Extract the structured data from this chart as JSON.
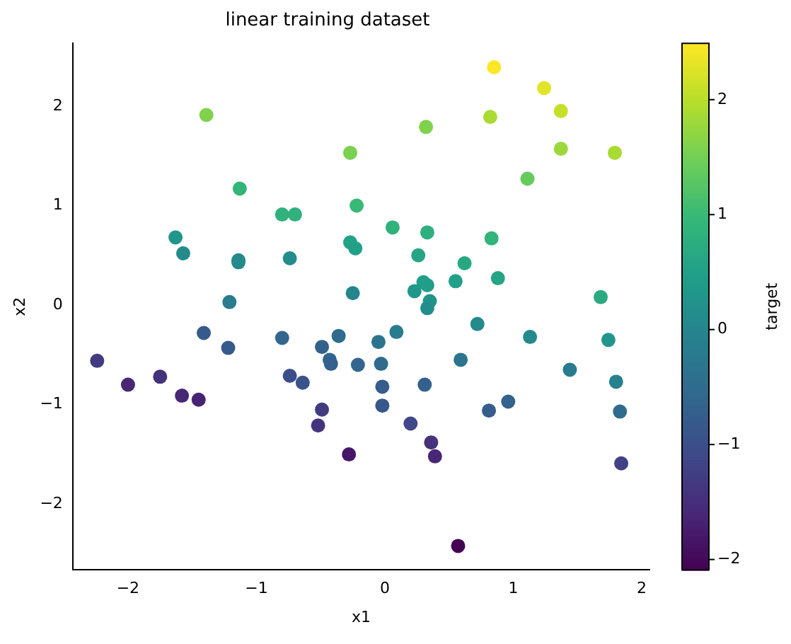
{
  "chart_data": {
    "type": "scatter",
    "title": "linear training dataset",
    "xlabel": "x1",
    "ylabel": "x2",
    "clabel": "target",
    "xlim": [
      -2.43,
      2.06
    ],
    "ylim": [
      -2.66,
      2.63
    ],
    "xticks": [
      -2,
      -1,
      0,
      1,
      2
    ],
    "yticks": [
      -2,
      -1,
      0,
      1,
      2
    ],
    "clim": [
      -2.09,
      2.49
    ],
    "cticks": [
      -2,
      -1,
      0,
      1,
      2
    ],
    "grid": false,
    "legend": false,
    "marker": "circle",
    "x": [
      -2.24,
      -2.0,
      -1.75,
      -1.58,
      -1.45,
      -1.41,
      -1.22,
      -1.21,
      -1.63,
      -1.57,
      -1.39,
      -1.13,
      -1.14,
      -1.14,
      -0.8,
      -0.7,
      -0.74,
      -0.27,
      -0.22,
      -0.27,
      -0.23,
      -0.25,
      0.85,
      1.24,
      1.37,
      0.82,
      0.32,
      1.37,
      1.79,
      1.11,
      0.06,
      0.33,
      0.83,
      0.26,
      0.62,
      0.55,
      0.88,
      0.3,
      0.33,
      0.23,
      0.35,
      0.33,
      1.68,
      0.72,
      0.09,
      -0.05,
      -0.21,
      -0.03,
      0.59,
      1.13,
      1.44,
      1.74,
      1.8,
      -0.02,
      0.31,
      -0.02,
      0.96,
      0.81,
      1.83,
      0.2,
      0.36,
      0.39,
      1.84,
      0.57,
      -0.28,
      -0.8,
      -0.36,
      -0.49,
      -0.43,
      -0.42,
      -0.74,
      -0.64,
      -0.49,
      -0.52
    ],
    "values": [
      -0.56,
      -0.8,
      -0.72,
      -0.91,
      -0.95,
      -0.28,
      -0.43,
      0.03,
      0.68,
      0.52,
      1.91,
      1.17,
      0.45,
      0.43,
      0.91,
      0.91,
      0.47,
      1.53,
      1.0,
      0.63,
      0.57,
      0.12,
      2.39,
      2.18,
      1.95,
      1.89,
      1.79,
      1.57,
      1.53,
      1.27,
      0.78,
      0.73,
      0.67,
      0.5,
      0.42,
      0.24,
      0.27,
      0.23,
      0.2,
      0.14,
      0.04,
      -0.03,
      0.08,
      -0.19,
      -0.27,
      -0.37,
      -0.6,
      -0.59,
      -0.55,
      -0.32,
      -0.65,
      -0.35,
      -0.77,
      -0.82,
      -0.8,
      -1.01,
      -0.97,
      -1.06,
      -1.07,
      -1.19,
      -1.38,
      -1.52,
      -1.59,
      -2.42,
      -1.5,
      -0.33,
      -0.31,
      -0.42,
      -0.55,
      -0.59,
      -0.71,
      -0.78,
      -1.05,
      -1.21
    ],
    "cvalues": [
      -1.3,
      -1.6,
      -1.45,
      -1.6,
      -1.65,
      -0.8,
      -0.8,
      -0.2,
      0.3,
      0.1,
      1.6,
      0.9,
      0.1,
      0.1,
      0.85,
      0.85,
      0.15,
      1.55,
      1.0,
      0.55,
      0.5,
      0.0,
      2.49,
      2.3,
      2.1,
      1.9,
      1.6,
      1.8,
      1.9,
      1.4,
      0.85,
      0.8,
      0.9,
      0.6,
      0.65,
      0.5,
      0.6,
      0.45,
      0.45,
      0.3,
      0.25,
      0.15,
      0.7,
      0.1,
      -0.2,
      -0.35,
      -0.6,
      -0.5,
      -0.3,
      0.1,
      -0.2,
      0.3,
      -0.1,
      -0.75,
      -0.7,
      -0.85,
      -0.65,
      -0.75,
      -0.5,
      -1.1,
      -1.45,
      -1.6,
      -1.2,
      -2.09,
      -1.8,
      -0.6,
      -0.5,
      -0.7,
      -0.6,
      -0.7,
      -1.0,
      -0.9,
      -1.3,
      -1.4
    ]
  }
}
